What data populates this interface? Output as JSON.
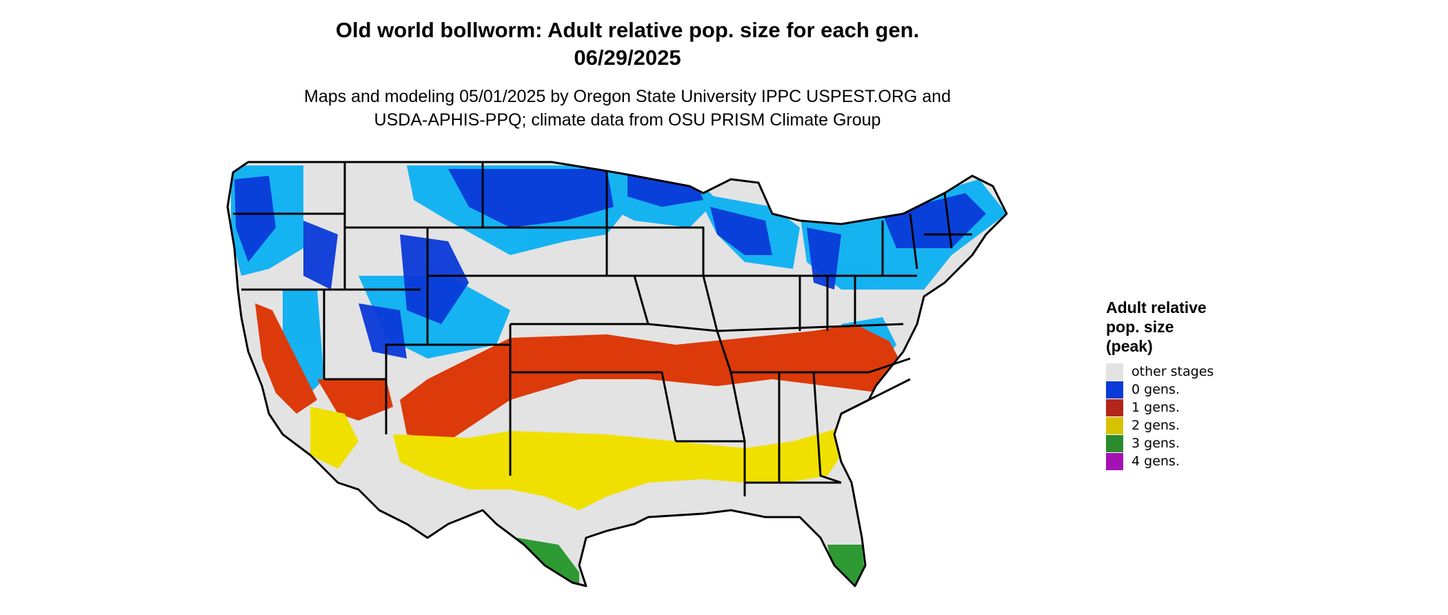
{
  "title": {
    "line1": "Old world bollworm: Adult relative pop. size for each gen.",
    "line2": "06/29/2025"
  },
  "subtitle": {
    "line1": "Maps and modeling 05/01/2025 by Oregon State University IPPC USPEST.ORG and",
    "line2": "USDA-APHIS-PPQ; climate data from OSU PRISM Climate Group"
  },
  "legend": {
    "title_lines": [
      "Adult relative",
      "pop. size",
      "(peak)"
    ],
    "items": [
      {
        "label": "other stages",
        "color": "#e3e3e3"
      },
      {
        "label": "0 gens.",
        "color": "#0a3ad8"
      },
      {
        "label": "1 gens.",
        "color": "#b3261a"
      },
      {
        "label": "2 gens.",
        "color": "#d7c200"
      },
      {
        "label": "3 gens.",
        "color": "#2b8a2b"
      },
      {
        "label": "4 gens.",
        "color": "#a313b3"
      }
    ]
  },
  "map": {
    "region": "Contiguous United States",
    "boundaries": "state",
    "colors": {
      "background_land": "#e3e3e3",
      "zero_gens_dark": "#0a3ad8",
      "zero_gens_light": "#0bb0f2",
      "one_gen": "#dc3a0a",
      "two_gens": "#f0e000",
      "three_gens": "#2e9a34",
      "border": "#000000"
    }
  }
}
